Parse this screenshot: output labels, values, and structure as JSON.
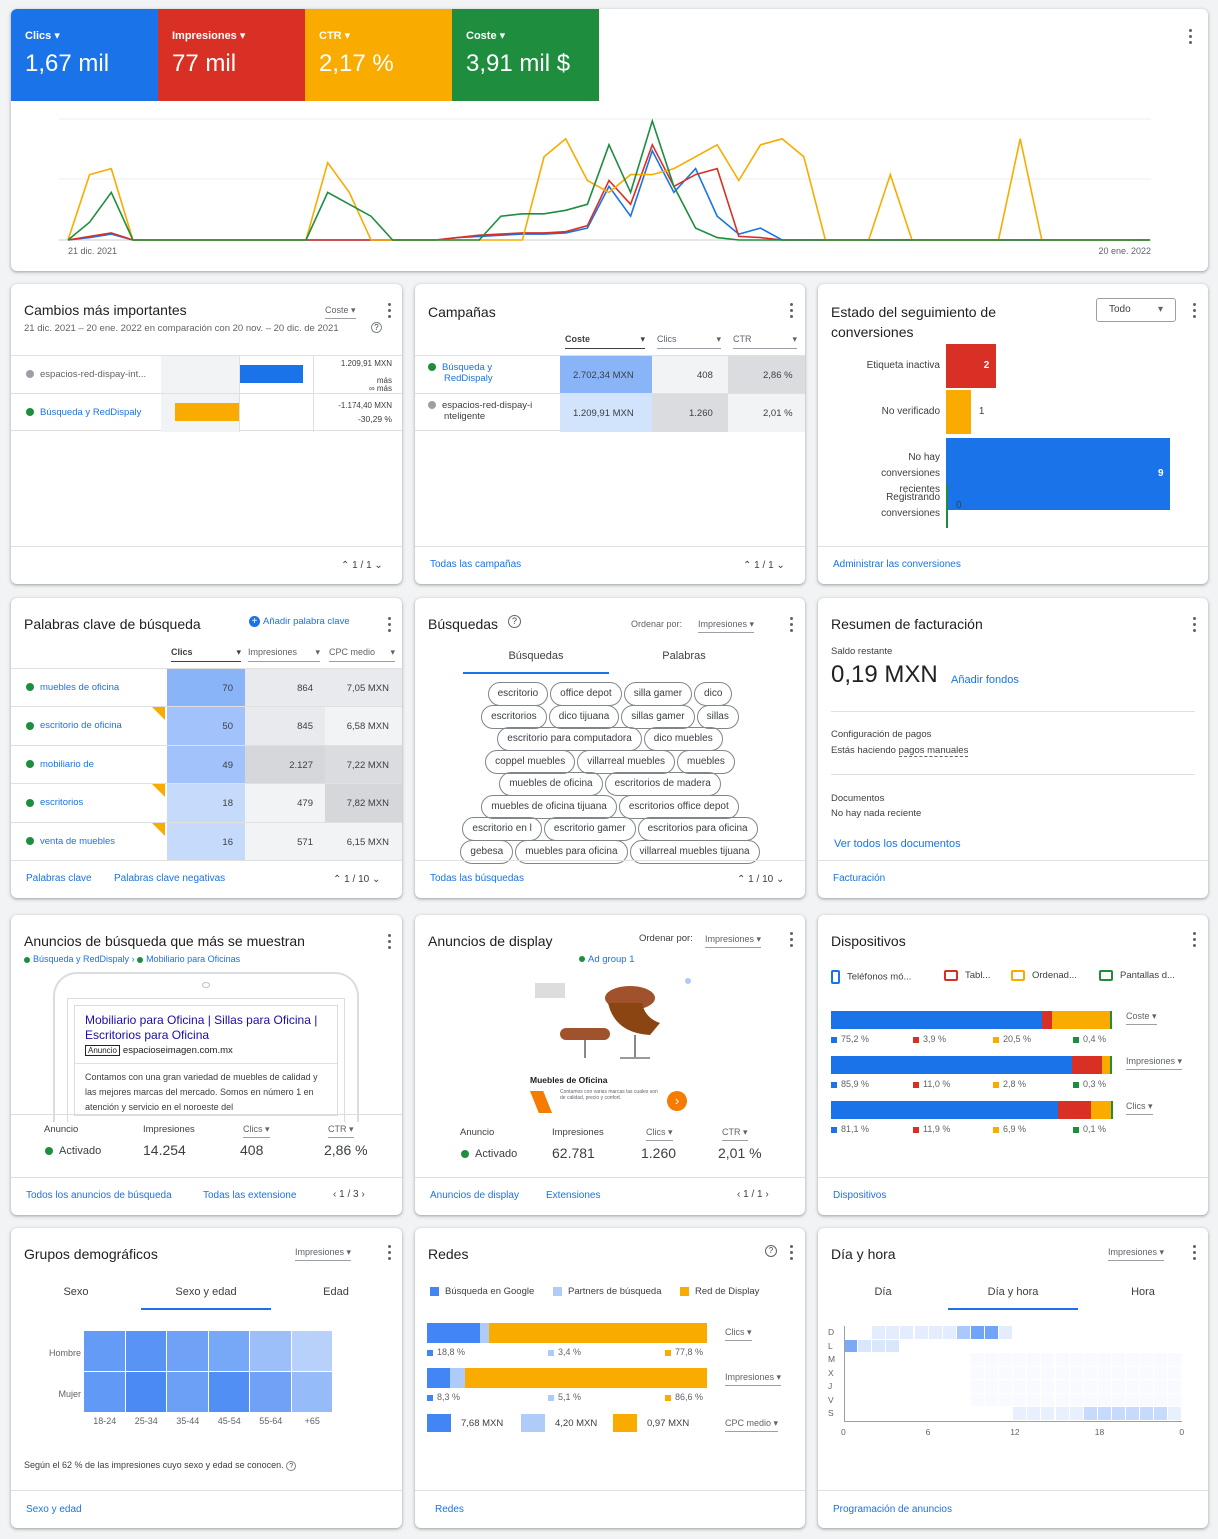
{
  "performance": {
    "tiles": [
      {
        "label": "Clics",
        "value": "1,67 mil",
        "color": "#1a73e8"
      },
      {
        "label": "Impresiones",
        "value": "77 mil",
        "color": "#d93025"
      },
      {
        "label": "CTR",
        "value": "2,17 %",
        "color": "#f9ab00"
      },
      {
        "label": "Coste",
        "value": "3,91 mil $",
        "color": "#1e8e3e"
      }
    ],
    "x_start": "21 dic. 2021",
    "x_end": "20 ene. 2022",
    "chart_data": {
      "type": "line",
      "x_start": "21 dic. 2021",
      "x_end": "20 ene. 2022",
      "series": [
        {
          "name": "Clics",
          "color": "#1a73e8",
          "values": [
            0,
            2,
            5,
            0,
            0,
            0,
            0,
            0,
            0,
            0,
            0,
            0,
            0,
            0,
            0,
            0,
            0,
            0,
            2,
            3,
            4,
            5,
            5,
            6,
            10,
            45,
            20,
            75,
            40,
            60,
            20,
            5,
            10,
            0,
            0,
            0,
            0,
            0,
            0,
            0,
            0,
            0,
            0,
            0,
            0,
            0,
            0,
            0,
            0,
            0,
            0
          ]
        },
        {
          "name": "Impresiones",
          "color": "#d93025",
          "values": [
            0,
            3,
            6,
            0,
            0,
            0,
            0,
            0,
            0,
            0,
            0,
            0,
            0,
            0,
            0,
            0,
            0,
            0,
            2,
            4,
            5,
            6,
            6,
            7,
            12,
            50,
            30,
            80,
            45,
            55,
            60,
            3,
            2,
            0,
            0,
            0,
            0,
            0,
            0,
            0,
            0,
            0,
            0,
            0,
            0,
            0,
            0,
            0,
            0,
            0,
            0
          ]
        },
        {
          "name": "CTR",
          "color": "#f9ab00",
          "values": [
            0,
            55,
            60,
            0,
            0,
            0,
            0,
            0,
            0,
            0,
            0,
            0,
            65,
            40,
            0,
            0,
            0,
            0,
            0,
            0,
            0,
            0,
            70,
            85,
            50,
            40,
            55,
            55,
            60,
            70,
            80,
            50,
            80,
            85,
            70,
            0,
            0,
            0,
            55,
            0,
            0,
            0,
            0,
            0,
            85,
            0,
            0,
            0,
            0,
            0,
            0
          ]
        },
        {
          "name": "Coste",
          "color": "#1e8e3e",
          "values": [
            0,
            15,
            40,
            0,
            0,
            0,
            0,
            0,
            0,
            0,
            0,
            0,
            40,
            30,
            20,
            0,
            0,
            0,
            0,
            0,
            20,
            22,
            22,
            25,
            30,
            80,
            40,
            100,
            45,
            10,
            2,
            0,
            0,
            0,
            0,
            0,
            0,
            0,
            0,
            0,
            0,
            0,
            0,
            0,
            0,
            0,
            0,
            0,
            0,
            0,
            0
          ]
        }
      ]
    }
  },
  "cambios": {
    "title": "Cambios más importantes",
    "sort": "Coste",
    "range": "21 dic. 2021 – 20 ene. 2022 en comparación con 20 nov. – 20 dic. de 2021",
    "rows": [
      {
        "name": "espacios-red-dispay-int...",
        "val1": "1.209,91 MXN",
        "val2": "más",
        "val3": "∞ más",
        "status": "gray"
      },
      {
        "name": "Búsqueda y RedDispaly",
        "val1": "-1.174,40 MXN",
        "val2": "-30,29 %",
        "status": "green"
      }
    ],
    "pager": "1 / 1"
  },
  "campanas": {
    "title": "Campañas",
    "headers": [
      "Coste",
      "Clics",
      "CTR"
    ],
    "rows": [
      {
        "name1": "Búsqueda y",
        "name2": "RedDispaly",
        "coste": "2.702,34 MXN",
        "clics": "408",
        "ctr": "2,86 %",
        "status": "green"
      },
      {
        "name1": "espacios-red-dispay-i",
        "name2": "nteligente",
        "coste": "1.209,91 MXN",
        "clics": "1.260",
        "ctr": "2,01 %",
        "status": "gray"
      }
    ],
    "link": "Todas las campañas",
    "pager": "1 / 1"
  },
  "conversiones": {
    "title1": "Estado del seguimiento de",
    "title2": "conversiones",
    "filter": "Todo",
    "rows": [
      {
        "label": "Etiqueta inactiva",
        "value": 2,
        "color": "#d93025"
      },
      {
        "label": "No verificado",
        "value": 1,
        "color": "#f9ab00"
      },
      {
        "label": "No hay conversiones recientes",
        "value": 9,
        "color": "#1a73e8"
      },
      {
        "label": "Registrando conversiones",
        "value": 0,
        "color": "#1e8e3e"
      }
    ],
    "link": "Administrar las conversiones"
  },
  "palabras": {
    "title": "Palabras clave de búsqueda",
    "add": "Añadir palabra clave",
    "headers": [
      "Clics",
      "Impresiones",
      "CPC medio"
    ],
    "rows": [
      {
        "kw": "muebles de oficina",
        "clics": "70",
        "imp": "864",
        "cpc": "7,05 MXN"
      },
      {
        "kw": "escritorio de oficina",
        "clics": "50",
        "imp": "845",
        "cpc": "6,58 MXN"
      },
      {
        "kw": "mobiliario de",
        "clics": "49",
        "imp": "2.127",
        "cpc": "7,22 MXN"
      },
      {
        "kw": "escritorios",
        "clics": "18",
        "imp": "479",
        "cpc": "7,82 MXN"
      },
      {
        "kw": "venta de muebles",
        "clics": "16",
        "imp": "571",
        "cpc": "6,15 MXN"
      }
    ],
    "link1": "Palabras clave",
    "link2": "Palabras clave negativas",
    "pager": "1 / 10"
  },
  "busquedas": {
    "title": "Búsquedas",
    "order_label": "Ordenar por:",
    "order": "Impresiones",
    "tabs": [
      "Búsquedas",
      "Palabras"
    ],
    "terms": [
      [
        "escritorio",
        "office depot",
        "silla gamer",
        "dico"
      ],
      [
        "escritorios",
        "dico tijuana",
        "sillas gamer",
        "sillas"
      ],
      [
        "escritorio para computadora",
        "dico muebles"
      ],
      [
        "coppel muebles",
        "villarreal muebles",
        "muebles"
      ],
      [
        "muebles de oficina",
        "escritorios de madera"
      ],
      [
        "muebles de oficina tijuana",
        "escritorios office depot"
      ],
      [
        "escritorio en l",
        "escritorio gamer",
        "escritorios para oficina"
      ],
      [
        "gebesa",
        "muebles para oficina",
        "villarreal muebles tijuana"
      ]
    ],
    "link": "Todas las búsquedas",
    "pager": "1 / 10"
  },
  "facturacion": {
    "title": "Resumen de facturación",
    "saldo_label": "Saldo restante",
    "saldo": "0,19 MXN",
    "add_funds": "Añadir fondos",
    "config_label": "Configuración de pagos",
    "config_text_a": "Estás haciendo ",
    "config_text_b": "pagos manuales",
    "docs_label": "Documentos",
    "docs_text": "No hay nada reciente",
    "docs_link": "Ver todos los documentos",
    "link": "Facturación"
  },
  "anuncios_busqueda": {
    "title": "Anuncios de búsqueda que más se muestran",
    "crumb1": "Búsqueda y RedDispaly",
    "crumb2": "Mobiliario para Oficinas",
    "ad_title": "Mobiliario para Oficina | Sillas para Oficina | Escritorios para Oficina",
    "ad_badge": "Anuncio",
    "ad_url": "espacioseimagen.com.mx",
    "ad_desc": "Contamos con una gran variedad de muebles de calidad y las mejores marcas del mercado. Somos en número 1 en atención y servicio en el noroeste del",
    "stats": [
      {
        "label": "Anuncio",
        "value": "Activado"
      },
      {
        "label": "Impresiones",
        "value": "14.254"
      },
      {
        "label": "Clics",
        "value": "408"
      },
      {
        "label": "CTR",
        "value": "2,86 %"
      }
    ],
    "link1": "Todos los anuncios de búsqueda",
    "link2": "Todas las extensione",
    "pager": "1 / 3"
  },
  "anuncios_display": {
    "title": "Anuncios de display",
    "order_label": "Ordenar por:",
    "order": "Impresiones",
    "group": "Ad group 1",
    "ad_heading": "Muebles de Oficina",
    "ad_small": "Contamos con varias marcas las cuales son de calidad, precio y confort.",
    "stats": [
      {
        "label": "Anuncio",
        "value": "Activado"
      },
      {
        "label": "Impresiones",
        "value": "62.781"
      },
      {
        "label": "Clics",
        "value": "1.260"
      },
      {
        "label": "CTR",
        "value": "2,01 %"
      }
    ],
    "link1": "Anuncios de display",
    "link2": "Extensiones",
    "pager": "1 / 1"
  },
  "dispositivos": {
    "title": "Dispositivos",
    "legend": [
      {
        "label": "Teléfonos mó...",
        "color": "#1a73e8"
      },
      {
        "label": "Tabl...",
        "color": "#d93025"
      },
      {
        "label": "Ordenad...",
        "color": "#f9ab00"
      },
      {
        "label": "Pantallas d...",
        "color": "#1e8e3e"
      }
    ],
    "bars": [
      {
        "metric": "Coste",
        "values": [
          75.2,
          3.9,
          20.5,
          0.4
        ],
        "labels": [
          "75,2 %",
          "3,9 %",
          "20,5 %",
          "0,4 %"
        ]
      },
      {
        "metric": "Impresiones",
        "values": [
          85.9,
          11.0,
          2.8,
          0.3
        ],
        "labels": [
          "85,9 %",
          "11,0 %",
          "2,8 %",
          "0,3 %"
        ]
      },
      {
        "metric": "Clics",
        "values": [
          81.1,
          11.9,
          6.9,
          0.1
        ],
        "labels": [
          "81,1 %",
          "11,9 %",
          "6,9 %",
          "0,1 %"
        ]
      }
    ],
    "link": "Dispositivos"
  },
  "demograficos": {
    "title": "Grupos demográficos",
    "sort": "Impresiones",
    "tabs": [
      "Sexo",
      "Sexo y edad",
      "Edad"
    ],
    "rows": [
      "Hombre",
      "Mujer"
    ],
    "cols": [
      "18-24",
      "25-34",
      "35-44",
      "45-54",
      "55-64",
      "+65"
    ],
    "chart_data": {
      "type": "heatmap",
      "rows": [
        "Hombre",
        "Mujer"
      ],
      "cols": [
        "18-24",
        "25-34",
        "35-44",
        "45-54",
        "55-64",
        "+65"
      ],
      "values": [
        [
          0.78,
          0.85,
          0.7,
          0.65,
          0.4,
          0.22
        ],
        [
          0.8,
          0.95,
          0.72,
          0.9,
          0.7,
          0.45
        ]
      ]
    },
    "note": "Según el 62 % de las impresiones cuyo sexo y edad se conocen.",
    "link": "Sexo y edad"
  },
  "redes": {
    "title": "Redes",
    "legend": [
      {
        "label": "Búsqueda en Google",
        "color": "#4285f4"
      },
      {
        "label": "Partners de búsqueda",
        "color": "#aecbfa"
      },
      {
        "label": "Red de Display",
        "color": "#f9ab00"
      }
    ],
    "bars": [
      {
        "metric": "Clics",
        "values": [
          18.8,
          3.4,
          77.8
        ],
        "labels": [
          "18,8 %",
          "3,4 %",
          "77,8 %"
        ]
      },
      {
        "metric": "Impresiones",
        "values": [
          8.3,
          5.1,
          86.6
        ],
        "labels": [
          "8,3 %",
          "5,1 %",
          "86,6 %"
        ]
      }
    ],
    "cpc_metric": "CPC medio",
    "cpc": [
      "7,68 MXN",
      "4,20 MXN",
      "0,97 MXN"
    ],
    "link": "Redes"
  },
  "diahora": {
    "title": "Día y hora",
    "sort": "Impresiones",
    "tabs": [
      "Día",
      "Día y hora",
      "Hora"
    ],
    "days": [
      "D",
      "L",
      "M",
      "X",
      "J",
      "V",
      "S"
    ],
    "ticks": [
      "0",
      "6",
      "12",
      "18",
      "0"
    ],
    "link": "Programación de anuncios"
  }
}
